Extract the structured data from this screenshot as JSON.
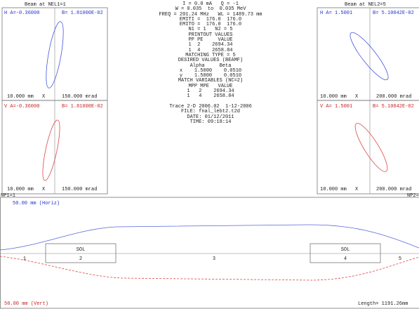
{
  "left_panel": {
    "title": "Beam at NEL1=1",
    "horizontal": {
      "alpha": "H A=-0.36000",
      "beta": "B= 1.81000E-02",
      "scale_x": "10.000 mm",
      "axis": "X",
      "scale_xp": "150.000 mrad"
    },
    "vertical": {
      "alpha": "V A=-0.36000",
      "beta": "B= 1.81000E-02",
      "scale_x": "10.000 mm",
      "axis": "X",
      "scale_xp": "150.000 mrad"
    }
  },
  "right_panel": {
    "title": "Beam at NEL2=5",
    "horizontal": {
      "alpha": "H A= 1.5001",
      "beta": "B= 5.10042E-02",
      "scale_x": "10.000 mm",
      "axis": "X",
      "scale_xp": "200.000 mrad"
    },
    "vertical": {
      "alpha": "V A= 1.5001",
      "beta": "B= 5.10042E-02",
      "scale_x": "10.000 mm",
      "axis": "X",
      "scale_xp": "200.000 mrad"
    }
  },
  "parameters": [
    "I = 0.0 mA   Q = -1",
    "W = 0.035  to  0.035 MeV",
    "FREQ = 201.24 MHz   WL = 1489.73 mm",
    "EMITI =  176.0  176.0",
    "EMITO =  176.0  176.0",
    "N1 = 1   N2 = 5",
    "PRINTOUT VALUES",
    "PP PE     VALUE",
    "1  2    2694.34",
    "1  4    2658.84",
    "MATCHING TYPE = 5",
    "DESIRED VALUES (BEAMF)",
    "Alpha     Beta",
    "x    1.5000    0.0510",
    "y    1.5000    0.0510",
    "MATCH VARIABLES (NC=2)",
    "MPP MPE   VALUE",
    "1   2    2694.34",
    "1   4    2658.84"
  ],
  "info": [
    "Trace 2-D 2006.02  1-12-2006",
    "FILE: fnal_lebt2.t2d",
    "DATE: 01/12/2011",
    "TIME: 09:18:14"
  ],
  "profile": {
    "np1": "NP1=1",
    "np2": "NP2=",
    "horiz_scale": "50.00 mm (Horiz)",
    "vert_scale": "50.00 mm (Vert)",
    "length": "Length= 1191.26mm",
    "elements": [
      "1",
      "2",
      "3",
      "4",
      "5"
    ],
    "solenoids": [
      "SOL",
      "SOL"
    ]
  }
}
